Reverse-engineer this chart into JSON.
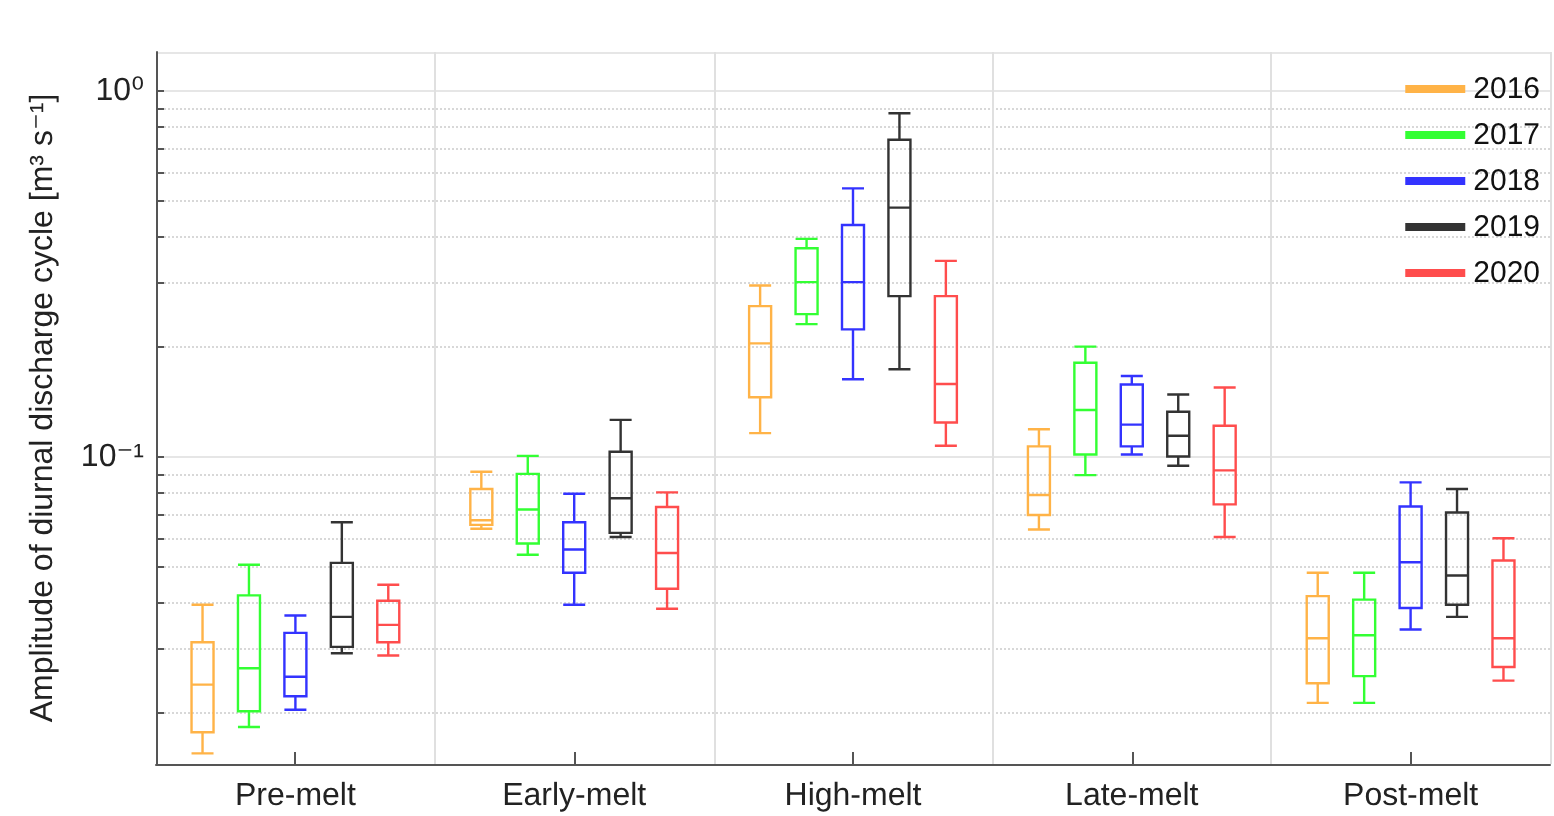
{
  "chart_data": {
    "type": "box",
    "ylabel": "Amplitude of diurnal discharge cycle [m³ s⁻¹]",
    "categories": [
      "Pre-melt",
      "Early-melt",
      "High-melt",
      "Late-melt",
      "Post-melt"
    ],
    "log": "y",
    "grid": true,
    "legend": "top right",
    "ylim": [
      0.0145,
      1.28
    ],
    "yticks": [
      {
        "value": 0.02,
        "label": null
      },
      {
        "value": 0.03,
        "label": null
      },
      {
        "value": 0.04,
        "label": null
      },
      {
        "value": 0.05,
        "label": null
      },
      {
        "value": 0.06,
        "label": null
      },
      {
        "value": 0.07,
        "label": null
      },
      {
        "value": 0.08,
        "label": null
      },
      {
        "value": 0.09,
        "label": null
      },
      {
        "value": 0.1,
        "label": "10⁻¹"
      },
      {
        "value": 0.2,
        "label": null
      },
      {
        "value": 0.3,
        "label": null
      },
      {
        "value": 0.4,
        "label": null
      },
      {
        "value": 0.5,
        "label": null
      },
      {
        "value": 0.6,
        "label": null
      },
      {
        "value": 0.7,
        "label": null
      },
      {
        "value": 0.8,
        "label": null
      },
      {
        "value": 0.9,
        "label": null
      },
      {
        "value": 1,
        "label": "10⁰"
      }
    ],
    "series": [
      {
        "name": "2016",
        "color": "#ffb347",
        "boxes": [
          {
            "low": 0.0155,
            "q1": 0.0177,
            "median": 0.0239,
            "q3": 0.0312,
            "high": 0.0395
          },
          {
            "low": 0.0637,
            "q1": 0.0653,
            "median": 0.0672,
            "q3": 0.0818,
            "high": 0.0912
          },
          {
            "low": 0.1163,
            "q1": 0.1458,
            "median": 0.2046,
            "q3": 0.2586,
            "high": 0.2944
          },
          {
            "low": 0.0634,
            "q1": 0.0695,
            "median": 0.0788,
            "q3": 0.107,
            "high": 0.1192
          },
          {
            "low": 0.0213,
            "q1": 0.0241,
            "median": 0.032,
            "q3": 0.0417,
            "high": 0.0483
          }
        ]
      },
      {
        "name": "2017",
        "color": "#33ff33",
        "boxes": [
          {
            "low": 0.0183,
            "q1": 0.0202,
            "median": 0.0265,
            "q3": 0.0419,
            "high": 0.0508
          },
          {
            "low": 0.0541,
            "q1": 0.0581,
            "median": 0.0719,
            "q3": 0.09,
            "high": 0.1008
          },
          {
            "low": 0.231,
            "q1": 0.246,
            "median": 0.3008,
            "q3": 0.3724,
            "high": 0.395
          },
          {
            "low": 0.0893,
            "q1": 0.1017,
            "median": 0.1345,
            "q3": 0.1812,
            "high": 0.2004
          },
          {
            "low": 0.0213,
            "q1": 0.0252,
            "median": 0.0326,
            "q3": 0.0408,
            "high": 0.0483
          }
        ]
      },
      {
        "name": "2018",
        "color": "#3333ff",
        "boxes": [
          {
            "low": 0.0204,
            "q1": 0.0222,
            "median": 0.0251,
            "q3": 0.0331,
            "high": 0.0369
          },
          {
            "low": 0.0395,
            "q1": 0.0483,
            "median": 0.0559,
            "q3": 0.0664,
            "high": 0.0794
          },
          {
            "low": 0.1633,
            "q1": 0.2234,
            "median": 0.3008,
            "q3": 0.431,
            "high": 0.5427
          },
          {
            "low": 0.1017,
            "q1": 0.107,
            "median": 0.1227,
            "q3": 0.158,
            "high": 0.1667
          },
          {
            "low": 0.0338,
            "q1": 0.0387,
            "median": 0.0516,
            "q3": 0.0733,
            "high": 0.0853
          }
        ]
      },
      {
        "name": "2019",
        "color": "#333333",
        "boxes": [
          {
            "low": 0.0291,
            "q1": 0.0303,
            "median": 0.0366,
            "q3": 0.0514,
            "high": 0.0664
          },
          {
            "low": 0.0605,
            "q1": 0.0621,
            "median": 0.0772,
            "q3": 0.1034,
            "high": 0.1264
          },
          {
            "low": 0.1738,
            "q1": 0.2754,
            "median": 0.4808,
            "q3": 0.7366,
            "high": 0.871
          },
          {
            "low": 0.0947,
            "q1": 0.1004,
            "median": 0.1144,
            "q3": 0.133,
            "high": 0.1483
          },
          {
            "low": 0.0366,
            "q1": 0.0395,
            "median": 0.0475,
            "q3": 0.0706,
            "high": 0.0818
          }
        ]
      },
      {
        "name": "2020",
        "color": "#ff4d4d",
        "boxes": [
          {
            "low": 0.0287,
            "q1": 0.0312,
            "median": 0.0348,
            "q3": 0.0405,
            "high": 0.0448
          },
          {
            "low": 0.0385,
            "q1": 0.0437,
            "median": 0.0547,
            "q3": 0.0731,
            "high": 0.0801
          },
          {
            "low": 0.1074,
            "q1": 0.1243,
            "median": 0.1585,
            "q3": 0.2754,
            "high": 0.3439
          },
          {
            "low": 0.0605,
            "q1": 0.0743,
            "median": 0.092,
            "q3": 0.1218,
            "high": 0.155
          },
          {
            "low": 0.0245,
            "q1": 0.0267,
            "median": 0.032,
            "q3": 0.0522,
            "high": 0.06
          }
        ]
      }
    ]
  }
}
